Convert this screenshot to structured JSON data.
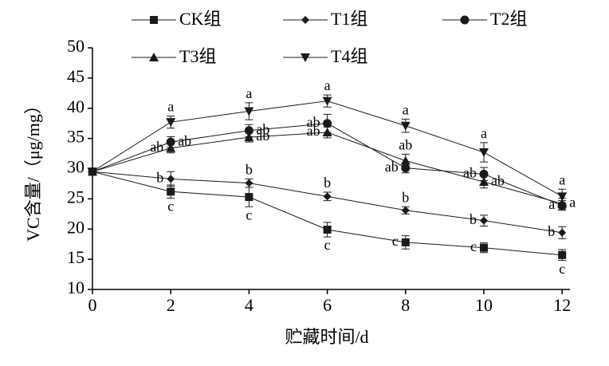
{
  "chart_data": {
    "type": "line",
    "x_label": "贮藏时间/d",
    "y_label": "VC含量/（μg/mg）",
    "x": [
      0,
      2,
      4,
      6,
      8,
      10,
      12
    ],
    "xlim": [
      0,
      12.2
    ],
    "xticks": [
      0,
      2,
      4,
      6,
      8,
      10,
      12
    ],
    "ylim": [
      10,
      50
    ],
    "yticks": [
      10,
      15,
      20,
      25,
      30,
      35,
      40,
      45,
      50
    ],
    "series": [
      {
        "name": "CK组",
        "color": "#1a1a1a",
        "marker": "square",
        "values": [
          29.5,
          26.2,
          25.3,
          19.9,
          17.8,
          16.9,
          15.7
        ],
        "errors": [
          0.4,
          1.1,
          1.6,
          1.2,
          1.1,
          0.8,
          0.9
        ],
        "labels": [
          null,
          "c",
          "c",
          "c",
          "c",
          "c",
          "c"
        ]
      },
      {
        "name": "T1组",
        "color": "#1a1a1a",
        "marker": "diamond",
        "values": [
          29.5,
          28.3,
          27.6,
          25.4,
          23.1,
          21.4,
          19.4
        ],
        "errors": [
          0.4,
          1.2,
          0.7,
          0.7,
          0.6,
          0.9,
          1.0
        ],
        "labels": [
          null,
          "b",
          "b",
          "b",
          "b",
          "b",
          "b"
        ]
      },
      {
        "name": "T2组",
        "color": "#1a1a1a",
        "marker": "circle",
        "values": [
          29.5,
          34.4,
          36.3,
          37.5,
          30.1,
          29.1,
          23.9
        ],
        "errors": [
          0.4,
          0.9,
          1.0,
          1.5,
          0.8,
          1.1,
          0.8
        ],
        "labels": [
          null,
          "ab",
          "ab",
          "ab",
          "ab",
          "ab",
          "a"
        ]
      },
      {
        "name": "T3组",
        "color": "#1a1a1a",
        "marker": "triangle",
        "values": [
          29.5,
          33.4,
          35.2,
          36.0,
          31.3,
          27.8,
          24.2
        ],
        "errors": [
          0.4,
          0.8,
          0.8,
          0.9,
          1.1,
          1.0,
          0.9
        ],
        "labels": [
          null,
          "ab",
          "ab",
          "ab",
          "ab",
          "ab",
          "a"
        ]
      },
      {
        "name": "T4组",
        "color": "#1a1a1a",
        "marker": "triangle-down",
        "values": [
          29.5,
          37.7,
          39.5,
          41.2,
          37.1,
          32.7,
          25.4
        ],
        "errors": [
          0.4,
          1.0,
          1.4,
          1.0,
          1.1,
          1.6,
          1.2
        ],
        "labels": [
          null,
          "a",
          "a",
          "a",
          "a",
          "a",
          "a"
        ]
      }
    ]
  }
}
